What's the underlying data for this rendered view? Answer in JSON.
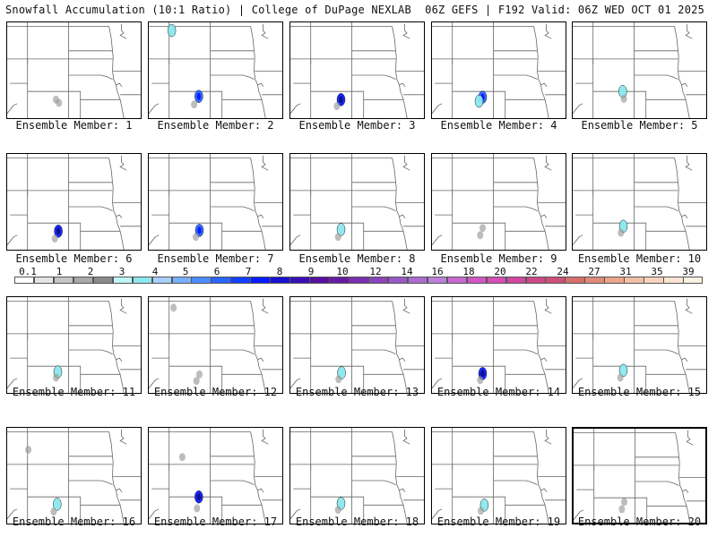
{
  "header": {
    "title_left": "Snowfall Accumulation (10:1 Ratio) | College of DuPage NEXLAB",
    "title_right": "06Z GEFS | F192 Valid: 06Z WED OCT 01 2025"
  },
  "colorbar": {
    "labels": [
      "0.1",
      "1",
      "2",
      "3",
      "4",
      "5",
      "6",
      "7",
      "8",
      "9",
      "10",
      "12",
      "14",
      "16",
      "18",
      "20",
      "22",
      "24",
      "27",
      "31",
      "35",
      "39"
    ],
    "colors": [
      "#ffffff",
      "#e4e4e4",
      "#c6c6c6",
      "#a8a8a8",
      "#8a8a8a",
      "#bff6f6",
      "#8ae8ee",
      "#a8d0ff",
      "#78b0ff",
      "#4c8cff",
      "#2a64ff",
      "#1240ff",
      "#0a1cff",
      "#1a10d0",
      "#3a0eb6",
      "#58109e",
      "#6a1aa2",
      "#7a2eb0",
      "#8a44bc",
      "#9a58c6",
      "#ab6cd0",
      "#bc80d8",
      "#c96ad0",
      "#d058c4",
      "#d44eb4",
      "#d048a0",
      "#cc4a8a",
      "#cc5078",
      "#d4706c",
      "#e08a78",
      "#eca68c",
      "#f4c0a4",
      "#f8d4bc",
      "#fbe4d2",
      "#fdf0e4"
    ]
  },
  "members": [
    {
      "label": "Ensemble Member: 1",
      "blobs": [
        {
          "lon": -106.2,
          "lat": 40.0,
          "cat": "gray"
        },
        {
          "lon": -105.7,
          "lat": 39.6,
          "cat": "gray"
        }
      ]
    },
    {
      "label": "Ensemble Member: 2",
      "blobs": [
        {
          "lon": -106.0,
          "lat": 40.4,
          "cat": "blue"
        },
        {
          "lon": -110.6,
          "lat": 48.5,
          "cat": "cyan"
        },
        {
          "lon": -106.8,
          "lat": 39.4,
          "cat": "gray"
        }
      ]
    },
    {
      "label": "Ensemble Member: 3",
      "blobs": [
        {
          "lon": -105.9,
          "lat": 40.0,
          "cat": "darkblue"
        },
        {
          "lon": -106.6,
          "lat": 39.2,
          "cat": "gray"
        }
      ]
    },
    {
      "label": "Ensemble Member: 4",
      "blobs": [
        {
          "lon": -105.9,
          "lat": 40.3,
          "cat": "blue"
        },
        {
          "lon": -106.5,
          "lat": 39.8,
          "cat": "cyan"
        }
      ]
    },
    {
      "label": "Ensemble Member: 5",
      "blobs": [
        {
          "lon": -106.0,
          "lat": 41.0,
          "cat": "cyan"
        },
        {
          "lon": -105.8,
          "lat": 40.1,
          "cat": "gray"
        }
      ]
    },
    {
      "label": "Ensemble Member: 6",
      "blobs": [
        {
          "lon": -105.8,
          "lat": 40.0,
          "cat": "darkblue"
        },
        {
          "lon": -106.4,
          "lat": 39.1,
          "cat": "gray"
        }
      ]
    },
    {
      "label": "Ensemble Member: 7",
      "blobs": [
        {
          "lon": -105.9,
          "lat": 40.1,
          "cat": "blue"
        },
        {
          "lon": -106.5,
          "lat": 39.3,
          "cat": "gray"
        }
      ]
    },
    {
      "label": "Ensemble Member: 8",
      "blobs": [
        {
          "lon": -105.9,
          "lat": 40.2,
          "cat": "cyan"
        },
        {
          "lon": -106.4,
          "lat": 39.3,
          "cat": "gray"
        }
      ]
    },
    {
      "label": "Ensemble Member: 9",
      "blobs": [
        {
          "lon": -105.9,
          "lat": 40.4,
          "cat": "gray"
        },
        {
          "lon": -106.3,
          "lat": 39.5,
          "cat": "gray"
        }
      ]
    },
    {
      "label": "Ensemble Member: 10",
      "blobs": [
        {
          "lon": -105.9,
          "lat": 40.6,
          "cat": "cyan"
        },
        {
          "lon": -106.3,
          "lat": 39.8,
          "cat": "gray"
        }
      ]
    },
    {
      "label": "Ensemble Member: 11",
      "blobs": [
        {
          "lon": -105.9,
          "lat": 40.3,
          "cat": "cyan"
        },
        {
          "lon": -106.2,
          "lat": 39.6,
          "cat": "gray"
        }
      ]
    },
    {
      "label": "Ensemble Member: 12",
      "blobs": [
        {
          "lon": -105.9,
          "lat": 40.0,
          "cat": "gray"
        },
        {
          "lon": -106.4,
          "lat": 39.2,
          "cat": "gray"
        },
        {
          "lon": -110.3,
          "lat": 48.2,
          "cat": "gray"
        }
      ]
    },
    {
      "label": "Ensemble Member: 13",
      "blobs": [
        {
          "lon": -105.8,
          "lat": 40.2,
          "cat": "cyan"
        },
        {
          "lon": -106.3,
          "lat": 39.4,
          "cat": "gray"
        }
      ]
    },
    {
      "label": "Ensemble Member: 14",
      "blobs": [
        {
          "lon": -105.9,
          "lat": 40.1,
          "cat": "darkblue"
        },
        {
          "lon": -106.3,
          "lat": 39.3,
          "cat": "gray"
        }
      ]
    },
    {
      "label": "Ensemble Member: 15",
      "blobs": [
        {
          "lon": -105.9,
          "lat": 40.5,
          "cat": "cyan"
        },
        {
          "lon": -106.4,
          "lat": 39.6,
          "cat": "gray"
        }
      ]
    },
    {
      "label": "Ensemble Member: 16",
      "blobs": [
        {
          "lon": -106.0,
          "lat": 40.1,
          "cat": "cyan"
        },
        {
          "lon": -106.6,
          "lat": 39.2,
          "cat": "gray"
        },
        {
          "lon": -110.9,
          "lat": 46.8,
          "cat": "gray"
        }
      ]
    },
    {
      "label": "Ensemble Member: 17",
      "blobs": [
        {
          "lon": -106.0,
          "lat": 41.0,
          "cat": "darkblue"
        },
        {
          "lon": -106.3,
          "lat": 39.6,
          "cat": "gray"
        },
        {
          "lon": -108.8,
          "lat": 45.9,
          "cat": "gray"
        }
      ]
    },
    {
      "label": "Ensemble Member: 18",
      "blobs": [
        {
          "lon": -105.9,
          "lat": 40.2,
          "cat": "cyan"
        },
        {
          "lon": -106.4,
          "lat": 39.4,
          "cat": "gray"
        }
      ]
    },
    {
      "label": "Ensemble Member: 19",
      "blobs": [
        {
          "lon": -105.6,
          "lat": 40.0,
          "cat": "cyan"
        },
        {
          "lon": -106.2,
          "lat": 39.3,
          "cat": "gray"
        }
      ]
    },
    {
      "label": "Ensemble Member: 20",
      "blobs": [
        {
          "lon": -105.9,
          "lat": 40.5,
          "cat": "gray"
        },
        {
          "lon": -106.3,
          "lat": 39.6,
          "cat": "gray"
        }
      ]
    }
  ],
  "blob_colors": {
    "gray": "#9a9a9a",
    "cyan": "#8ae8ee",
    "blue": "#2a64ff",
    "darkblue": "#0a1cff"
  }
}
